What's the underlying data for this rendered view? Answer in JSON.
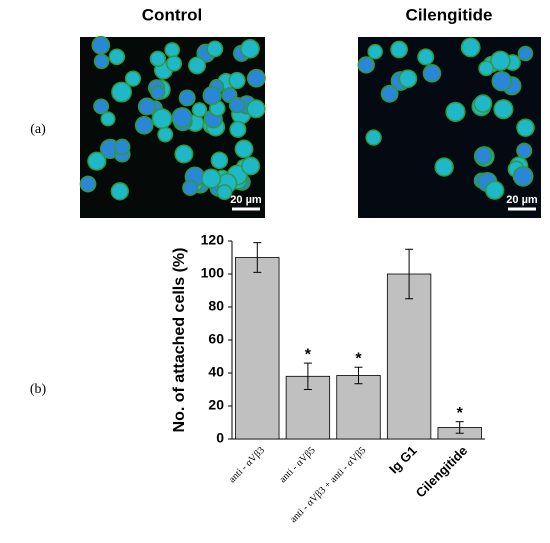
{
  "panel_labels": [
    "(a)",
    "(b)"
  ],
  "images": [
    {
      "title": "Control",
      "scale_bar": "20 µm"
    },
    {
      "title": "Cilengitide",
      "scale_bar": "20 µm"
    }
  ],
  "chart_data": {
    "type": "bar",
    "ylabel": "No. of attached cells (%)",
    "categories": [
      "anti - αVβ3",
      "anti - αVβ5",
      "anti - αVβ3 + anti - αVβ5",
      "Ig G1",
      "Cilengitide"
    ],
    "bold_categories": [
      false,
      false,
      false,
      true,
      true
    ],
    "values": [
      110,
      38,
      38.5,
      100,
      7
    ],
    "errors": [
      9,
      8,
      5,
      15,
      3.5
    ],
    "annotations": [
      null,
      "*",
      "*",
      null,
      "*"
    ],
    "color": "#c0c0c0",
    "ylim": [
      0,
      120
    ],
    "yticks": [
      0,
      20,
      40,
      60,
      80,
      100,
      120
    ],
    "grid": false
  }
}
